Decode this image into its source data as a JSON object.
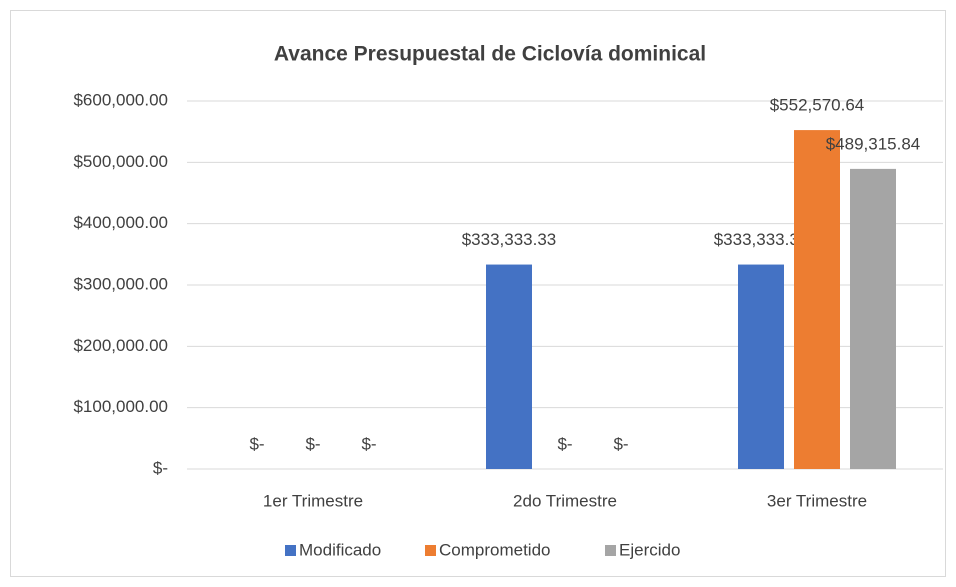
{
  "chart_data": {
    "type": "bar",
    "title": "Avance Presupuestal de Ciclovía dominical",
    "categories": [
      "1er Trimestre",
      "2do Trimestre",
      "3er Trimestre"
    ],
    "series": [
      {
        "name": "Modificado",
        "color": "#4472c4",
        "values": [
          0,
          333333.33,
          333333.33
        ],
        "value_labels": [
          "$-",
          "$333,333.33",
          "$333,333.33"
        ]
      },
      {
        "name": "Comprometido",
        "color": "#ed7d31",
        "values": [
          0,
          0,
          552570.64
        ],
        "value_labels": [
          "$-",
          "$-",
          "$552,570.64"
        ]
      },
      {
        "name": "Ejercido",
        "color": "#a5a5a5",
        "values": [
          0,
          0,
          489315.84
        ],
        "value_labels": [
          "$-",
          "$-",
          "$489,315.84"
        ]
      }
    ],
    "ylim": [
      0,
      600000
    ],
    "yticks": [
      {
        "value": 0,
        "label": "$-"
      },
      {
        "value": 100000,
        "label": "$100,000.00"
      },
      {
        "value": 200000,
        "label": "$200,000.00"
      },
      {
        "value": 300000,
        "label": "$300,000.00"
      },
      {
        "value": 400000,
        "label": "$400,000.00"
      },
      {
        "value": 500000,
        "label": "$500,000.00"
      },
      {
        "value": 600000,
        "label": "$600,000.00"
      }
    ],
    "grid": true,
    "legend": "bottom"
  }
}
